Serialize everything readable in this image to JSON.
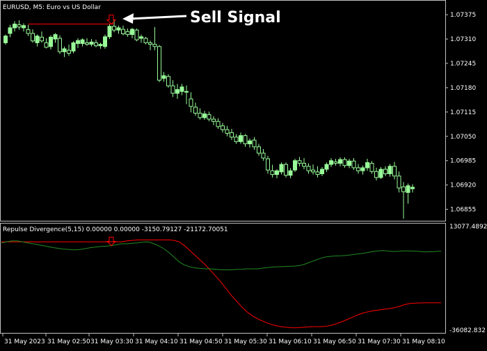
{
  "window": {
    "symbol_title": "EURUSD, M5:  Euro vs US Dollar"
  },
  "annotation": {
    "text": "Sell Signal"
  },
  "colors": {
    "background": "#000000",
    "frame": "#c0c0c0",
    "bull_candle": "#98fb98",
    "bear_candle": "#000000",
    "wick": "#98fb98",
    "signal_line": "#ff0000",
    "indicator_red": "#ff0000",
    "indicator_green": "#228b22",
    "axis_text": "#ffffff"
  },
  "chart_data": [
    {
      "type": "candlestick",
      "title": "EURUSD, M5:  Euro vs US Dollar",
      "y_tick_labels": [
        "1.07375",
        "1.07310",
        "1.07245",
        "1.07180",
        "1.07115",
        "1.07050",
        "1.06985",
        "1.06920",
        "1.06855"
      ],
      "ylim": [
        1.0683,
        1.07405
      ],
      "candles": [
        {
          "o": 1.073,
          "h": 1.07322,
          "l": 1.07295,
          "c": 1.07318
        },
        {
          "o": 1.07325,
          "h": 1.07348,
          "l": 1.07315,
          "c": 1.0734
        },
        {
          "o": 1.0734,
          "h": 1.07358,
          "l": 1.0733,
          "c": 1.0735
        },
        {
          "o": 1.07348,
          "h": 1.0736,
          "l": 1.07335,
          "c": 1.07342
        },
        {
          "o": 1.0734,
          "h": 1.07352,
          "l": 1.0733,
          "c": 1.07346
        },
        {
          "o": 1.07335,
          "h": 1.07348,
          "l": 1.07318,
          "c": 1.07325
        },
        {
          "o": 1.07325,
          "h": 1.07336,
          "l": 1.073,
          "c": 1.07305
        },
        {
          "o": 1.073,
          "h": 1.07322,
          "l": 1.0729,
          "c": 1.07318
        },
        {
          "o": 1.07315,
          "h": 1.0733,
          "l": 1.073,
          "c": 1.07305
        },
        {
          "o": 1.073,
          "h": 1.07312,
          "l": 1.07285,
          "c": 1.07288
        },
        {
          "o": 1.0729,
          "h": 1.0732,
          "l": 1.07282,
          "c": 1.07315
        },
        {
          "o": 1.0731,
          "h": 1.07326,
          "l": 1.073,
          "c": 1.07322
        },
        {
          "o": 1.07312,
          "h": 1.0732,
          "l": 1.0727,
          "c": 1.07276
        },
        {
          "o": 1.07276,
          "h": 1.0729,
          "l": 1.07262,
          "c": 1.07284
        },
        {
          "o": 1.0728,
          "h": 1.07295,
          "l": 1.07265,
          "c": 1.07272
        },
        {
          "o": 1.07278,
          "h": 1.07304,
          "l": 1.07272,
          "c": 1.073
        },
        {
          "o": 1.07298,
          "h": 1.07312,
          "l": 1.07286,
          "c": 1.07306
        },
        {
          "o": 1.07298,
          "h": 1.07312,
          "l": 1.0729,
          "c": 1.07308
        },
        {
          "o": 1.073,
          "h": 1.07312,
          "l": 1.07292,
          "c": 1.07296
        },
        {
          "o": 1.07296,
          "h": 1.0731,
          "l": 1.0729,
          "c": 1.07302
        },
        {
          "o": 1.073,
          "h": 1.07308,
          "l": 1.07288,
          "c": 1.07292
        },
        {
          "o": 1.07292,
          "h": 1.073,
          "l": 1.07284,
          "c": 1.07296
        },
        {
          "o": 1.0729,
          "h": 1.07322,
          "l": 1.07284,
          "c": 1.07316
        },
        {
          "o": 1.07316,
          "h": 1.0735,
          "l": 1.0731,
          "c": 1.07344
        },
        {
          "o": 1.07344,
          "h": 1.07362,
          "l": 1.07328,
          "c": 1.07334
        },
        {
          "o": 1.07334,
          "h": 1.07346,
          "l": 1.07324,
          "c": 1.0734
        },
        {
          "o": 1.07336,
          "h": 1.07346,
          "l": 1.0732,
          "c": 1.07324
        },
        {
          "o": 1.0733,
          "h": 1.07338,
          "l": 1.07316,
          "c": 1.07322
        },
        {
          "o": 1.07322,
          "h": 1.0734,
          "l": 1.07312,
          "c": 1.07336
        },
        {
          "o": 1.07334,
          "h": 1.07338,
          "l": 1.07304,
          "c": 1.07308
        },
        {
          "o": 1.07312,
          "h": 1.07322,
          "l": 1.073,
          "c": 1.07316
        },
        {
          "o": 1.07312,
          "h": 1.07316,
          "l": 1.07296,
          "c": 1.073
        },
        {
          "o": 1.073,
          "h": 1.07306,
          "l": 1.0728,
          "c": 1.07296
        },
        {
          "o": 1.07296,
          "h": 1.07342,
          "l": 1.0728,
          "c": 1.0729
        },
        {
          "o": 1.0729,
          "h": 1.07294,
          "l": 1.07195,
          "c": 1.072
        },
        {
          "o": 1.07205,
          "h": 1.07222,
          "l": 1.07196,
          "c": 1.07212
        },
        {
          "o": 1.0721,
          "h": 1.07216,
          "l": 1.0718,
          "c": 1.07185
        },
        {
          "o": 1.07185,
          "h": 1.072,
          "l": 1.07155,
          "c": 1.07165
        },
        {
          "o": 1.07165,
          "h": 1.0719,
          "l": 1.0715,
          "c": 1.07175
        },
        {
          "o": 1.0717,
          "h": 1.0719,
          "l": 1.0716,
          "c": 1.07182
        },
        {
          "o": 1.07168,
          "h": 1.07186,
          "l": 1.07136,
          "c": 1.0717
        },
        {
          "o": 1.0715,
          "h": 1.07168,
          "l": 1.07114,
          "c": 1.0713
        },
        {
          "o": 1.07128,
          "h": 1.0714,
          "l": 1.07105,
          "c": 1.07112
        },
        {
          "o": 1.07112,
          "h": 1.07125,
          "l": 1.07095,
          "c": 1.071
        },
        {
          "o": 1.071,
          "h": 1.07118,
          "l": 1.07094,
          "c": 1.0711
        },
        {
          "o": 1.07108,
          "h": 1.07116,
          "l": 1.0709,
          "c": 1.07096
        },
        {
          "o": 1.07096,
          "h": 1.07104,
          "l": 1.0708,
          "c": 1.0709
        },
        {
          "o": 1.0709,
          "h": 1.07098,
          "l": 1.0707,
          "c": 1.07076
        },
        {
          "o": 1.07078,
          "h": 1.07086,
          "l": 1.0706,
          "c": 1.07068
        },
        {
          "o": 1.07068,
          "h": 1.07078,
          "l": 1.0705,
          "c": 1.07058
        },
        {
          "o": 1.0706,
          "h": 1.0707,
          "l": 1.0704,
          "c": 1.07048
        },
        {
          "o": 1.07048,
          "h": 1.07056,
          "l": 1.0703,
          "c": 1.07036
        },
        {
          "o": 1.07036,
          "h": 1.0706,
          "l": 1.0703,
          "c": 1.07052
        },
        {
          "o": 1.07052,
          "h": 1.07056,
          "l": 1.07022,
          "c": 1.0703
        },
        {
          "o": 1.0703,
          "h": 1.07044,
          "l": 1.0702,
          "c": 1.07038
        },
        {
          "o": 1.0704,
          "h": 1.07048,
          "l": 1.07014,
          "c": 1.07022
        },
        {
          "o": 1.07022,
          "h": 1.0703,
          "l": 1.06998,
          "c": 1.07005
        },
        {
          "o": 1.07005,
          "h": 1.07016,
          "l": 1.06985,
          "c": 1.06992
        },
        {
          "o": 1.0699,
          "h": 1.06998,
          "l": 1.0695,
          "c": 1.0696
        },
        {
          "o": 1.06958,
          "h": 1.06974,
          "l": 1.0694,
          "c": 1.06948
        },
        {
          "o": 1.06948,
          "h": 1.06962,
          "l": 1.06938,
          "c": 1.06958
        },
        {
          "o": 1.06955,
          "h": 1.0698,
          "l": 1.06948,
          "c": 1.06975
        },
        {
          "o": 1.06975,
          "h": 1.0698,
          "l": 1.0694,
          "c": 1.06946
        },
        {
          "o": 1.06946,
          "h": 1.06965,
          "l": 1.06938,
          "c": 1.06958
        },
        {
          "o": 1.0696,
          "h": 1.0699,
          "l": 1.06955,
          "c": 1.06985
        },
        {
          "o": 1.06985,
          "h": 1.06995,
          "l": 1.0697,
          "c": 1.06978
        },
        {
          "o": 1.06978,
          "h": 1.06992,
          "l": 1.06962,
          "c": 1.0697
        },
        {
          "o": 1.0697,
          "h": 1.06978,
          "l": 1.0695,
          "c": 1.06958
        },
        {
          "o": 1.0696,
          "h": 1.06975,
          "l": 1.06948,
          "c": 1.06955
        },
        {
          "o": 1.06955,
          "h": 1.0697,
          "l": 1.0694,
          "c": 1.06948
        },
        {
          "o": 1.0695,
          "h": 1.06968,
          "l": 1.06944,
          "c": 1.06962
        },
        {
          "o": 1.06962,
          "h": 1.0698,
          "l": 1.06955,
          "c": 1.06975
        },
        {
          "o": 1.06975,
          "h": 1.06992,
          "l": 1.06968,
          "c": 1.06985
        },
        {
          "o": 1.06982,
          "h": 1.0699,
          "l": 1.06972,
          "c": 1.06978
        },
        {
          "o": 1.06978,
          "h": 1.06994,
          "l": 1.0697,
          "c": 1.06988
        },
        {
          "o": 1.06988,
          "h": 1.06994,
          "l": 1.06966,
          "c": 1.06972
        },
        {
          "o": 1.06972,
          "h": 1.0699,
          "l": 1.06965,
          "c": 1.06984
        },
        {
          "o": 1.06984,
          "h": 1.06992,
          "l": 1.0696,
          "c": 1.06966
        },
        {
          "o": 1.06966,
          "h": 1.06976,
          "l": 1.0695,
          "c": 1.06958
        },
        {
          "o": 1.06958,
          "h": 1.06972,
          "l": 1.06948,
          "c": 1.06966
        },
        {
          "o": 1.06966,
          "h": 1.0699,
          "l": 1.06958,
          "c": 1.0698
        },
        {
          "o": 1.06978,
          "h": 1.06984,
          "l": 1.0695,
          "c": 1.06956
        },
        {
          "o": 1.06956,
          "h": 1.06966,
          "l": 1.06932,
          "c": 1.0694
        },
        {
          "o": 1.0694,
          "h": 1.06968,
          "l": 1.06936,
          "c": 1.06962
        },
        {
          "o": 1.06962,
          "h": 1.0697,
          "l": 1.06944,
          "c": 1.0695
        },
        {
          "o": 1.0695,
          "h": 1.06976,
          "l": 1.06942,
          "c": 1.0697
        },
        {
          "o": 1.0697,
          "h": 1.06982,
          "l": 1.06935,
          "c": 1.06944
        },
        {
          "o": 1.06944,
          "h": 1.06956,
          "l": 1.069,
          "c": 1.06912
        },
        {
          "o": 1.06915,
          "h": 1.06928,
          "l": 1.0683,
          "c": 1.06902
        },
        {
          "o": 1.069,
          "h": 1.06924,
          "l": 1.0687,
          "c": 1.06918
        },
        {
          "o": 1.0691,
          "h": 1.06922,
          "l": 1.069,
          "c": 1.06914
        }
      ],
      "signal_level": 1.0735
    },
    {
      "type": "line",
      "title": "Repulse Divergence(5,15) 0.00000 0.00000 -3150.79127 -21172.70051",
      "y_tick_labels": [
        "13077.4892",
        "-36082.832"
      ],
      "ylim": [
        -36082.832,
        13077.4892
      ],
      "series": [
        {
          "color": "#ff0000",
          "values": [
            9000,
            9000,
            9000,
            9000,
            9000,
            9000,
            9000,
            9000,
            9000,
            9000,
            9000,
            9000,
            9000,
            9000,
            9000,
            9000,
            9000,
            9000,
            9000,
            9000,
            9000,
            9000,
            9000,
            9000,
            9500,
            9800,
            10000,
            10000,
            10000,
            10000,
            10000,
            10000,
            10000,
            9800,
            9000,
            7000,
            4500,
            2000,
            -500,
            -3000,
            -6000,
            -9000,
            -12000,
            -15500,
            -19000,
            -22000,
            -25000,
            -27500,
            -29500,
            -31000,
            -32200,
            -33300,
            -34200,
            -34800,
            -35200,
            -35500,
            -35600,
            -35500,
            -35300,
            -35100,
            -35000,
            -35000,
            -34800,
            -34300,
            -33500,
            -32500,
            -31400,
            -30200,
            -29000,
            -28000,
            -27300,
            -26800,
            -26400,
            -26000,
            -25700,
            -25200,
            -24500,
            -23600,
            -23000,
            -22800,
            -22700,
            -22600,
            -22600,
            -22600,
            -22600
          ]
        },
        {
          "color": "#228b22",
          "values": [
            8500,
            9000,
            9500,
            9500,
            9000,
            8500,
            8000,
            7500,
            7000,
            6500,
            6000,
            5600,
            5200,
            5000,
            4800,
            5000,
            5500,
            6000,
            6300,
            6600,
            6800,
            7000,
            7500,
            8000,
            8000,
            8300,
            8500,
            8800,
            9000,
            8200,
            7000,
            5500,
            3500,
            1000,
            -1500,
            -3000,
            -4000,
            -4500,
            -4800,
            -5000,
            -5000,
            -5200,
            -5500,
            -5500,
            -5500,
            -5300,
            -5200,
            -5000,
            -5000,
            -5000,
            -4600,
            -4300,
            -4000,
            -3900,
            -3800,
            -3700,
            -3600,
            -3300,
            -2500,
            -1500,
            -500,
            500,
            1200,
            1500,
            1700,
            1800,
            2000,
            2300,
            2700,
            3000,
            3500,
            4000,
            4300,
            4500,
            4200,
            4000,
            4100,
            4300,
            4300,
            4200,
            4000,
            3800,
            3900,
            4000,
            4200
          ]
        }
      ]
    }
  ],
  "time_axis": {
    "labels": [
      "31 May 2023",
      "31 May 02:50",
      "31 May 03:30",
      "31 May 04:10",
      "31 May 04:50",
      "31 May 05:30",
      "31 May 06:10",
      "31 May 06:50",
      "31 May 07:30",
      "31 May 08:10"
    ]
  }
}
